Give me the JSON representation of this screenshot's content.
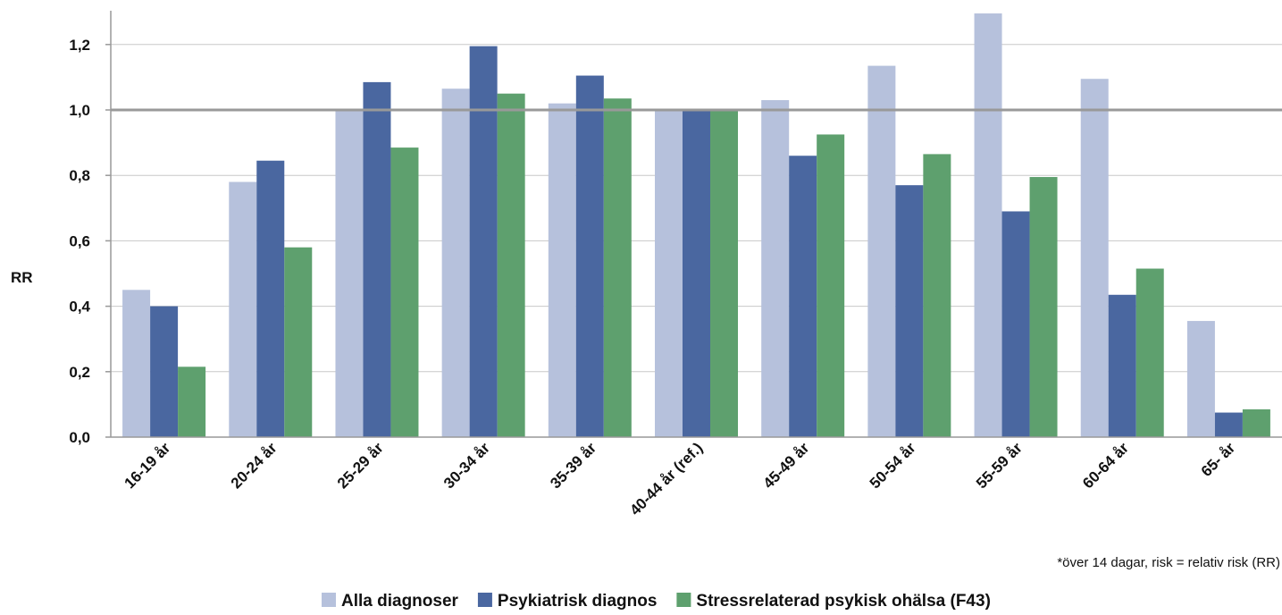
{
  "chart_data": {
    "type": "bar",
    "title": "",
    "xlabel": "",
    "ylabel": "RR",
    "ylim": [
      0,
      1.3
    ],
    "yticks": [
      "0,0",
      "0,2",
      "0,4",
      "0,6",
      "0,8",
      "1,0",
      "1,2"
    ],
    "ytick_values": [
      0,
      0.2,
      0.4,
      0.6,
      0.8,
      1.0,
      1.2
    ],
    "reference_line": 1.0,
    "grid": true,
    "legend_position": "bottom",
    "categories": [
      "16-19 år",
      "20-24 år",
      "25-29 år",
      "30-34 år",
      "35-39 år",
      "40-44 år (ref.)",
      "45-49 år",
      "50-54 år",
      "55-59 år",
      "60-64 år",
      "65- år"
    ],
    "series": [
      {
        "name": "Alla diagnoser",
        "color": "#b6c1dc",
        "values": [
          0.45,
          0.78,
          1.0,
          1.065,
          1.02,
          1.0,
          1.03,
          1.135,
          1.295,
          1.095,
          0.355
        ]
      },
      {
        "name": "Psykiatrisk diagnos",
        "color": "#4a67a0",
        "values": [
          0.4,
          0.845,
          1.085,
          1.195,
          1.105,
          1.0,
          0.86,
          0.77,
          0.69,
          0.435,
          0.075
        ]
      },
      {
        "name": "Stressrelaterad psykisk ohälsa (F43)",
        "color": "#5ea06e",
        "values": [
          0.215,
          0.58,
          0.885,
          1.05,
          1.035,
          1.0,
          0.925,
          0.865,
          0.795,
          0.515,
          0.085
        ]
      }
    ],
    "note": "*över 14 dagar, risk = relativ risk (RR)"
  }
}
